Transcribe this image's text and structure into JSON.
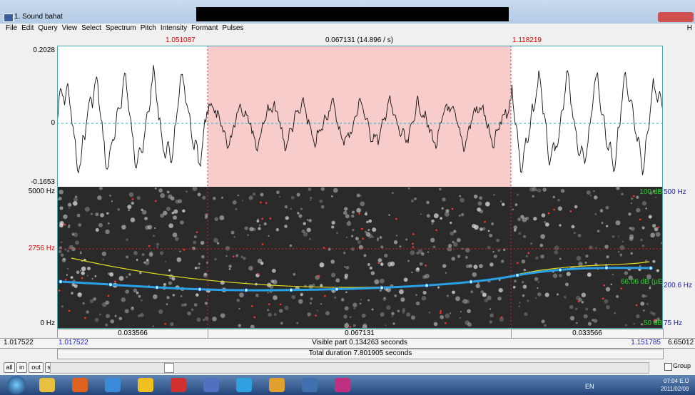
{
  "window": {
    "title": "1. Sound bahat"
  },
  "menu": [
    "File",
    "Edit",
    "Query",
    "View",
    "Select",
    "Spectrum",
    "Pitch",
    "Intensity",
    "Formant",
    "Pulses"
  ],
  "menu_right": "H",
  "selection": {
    "start": "1.051087",
    "duration": "0.067131 (14.896 / s)",
    "end": "1.118219"
  },
  "waveform": {
    "max": "0.2028",
    "zero": "0",
    "min": "-0.1653"
  },
  "spectrogram": {
    "top": "5000 Hz",
    "cursor": "2756 Hz",
    "bottom": "0 Hz"
  },
  "right_axis": {
    "intensity_top": "100 dB",
    "pitch_top": "500 Hz",
    "intensity_value": "66.06 dB (μE",
    "pitch_value": "200.6 Hz",
    "intensity_bottom": "50 dB",
    "pitch_bottom": "75 Hz"
  },
  "time_bar": {
    "left": "0.033566",
    "selection": "0.067131",
    "right": "0.033566",
    "window_start": "1.017522",
    "visible_start": "1.017522",
    "visible_part": "Visible part 0.134263 seconds",
    "visible_end": "1.151785",
    "window_end": "6.65012",
    "total": "Total duration 7.801905 seconds"
  },
  "buttons": [
    "all",
    "in",
    "out",
    "sel"
  ],
  "group": "Group",
  "taskbar": {
    "language": "EN",
    "time": "07:04 E.Ü",
    "date": "2011/02/09"
  }
}
